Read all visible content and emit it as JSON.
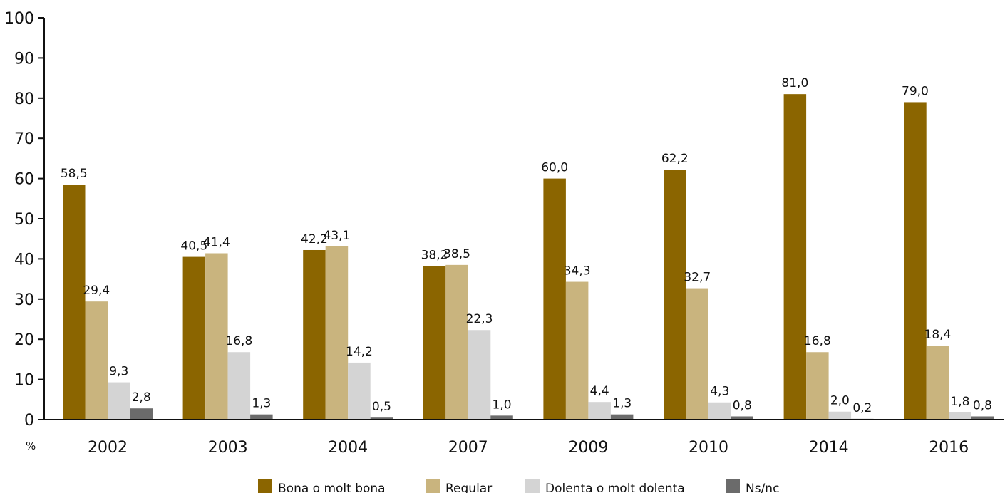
{
  "chart_data": {
    "type": "bar",
    "title": "",
    "xlabel": "",
    "ylabel": "",
    "unit_label": "%",
    "categories": [
      "2002",
      "2003",
      "2004",
      "2007",
      "2009",
      "2010",
      "2014",
      "2016"
    ],
    "ylim": [
      0,
      100
    ],
    "yticks": [
      0,
      10,
      20,
      30,
      40,
      50,
      60,
      70,
      80,
      90,
      100
    ],
    "grid": false,
    "legend_position": "bottom",
    "series": [
      {
        "name": "Bona o molt bona",
        "color": "#8B6500",
        "values": [
          58.5,
          40.5,
          42.2,
          38.2,
          60.0,
          62.2,
          81.0,
          79.0
        ],
        "labels": [
          "58,5",
          "40,5",
          "42,2",
          "38,2",
          "60,0",
          "62,2",
          "81,0",
          "79,0"
        ]
      },
      {
        "name": "Regular",
        "color": "#C9B47E",
        "values": [
          29.4,
          41.4,
          43.1,
          38.5,
          34.3,
          32.7,
          16.8,
          18.4
        ],
        "labels": [
          "29,4",
          "41,4",
          "43,1",
          "38,5",
          "34,3",
          "32,7",
          "16,8",
          "18,4"
        ]
      },
      {
        "name": "Dolenta o molt dolenta",
        "color": "#D4D4D4",
        "values": [
          9.3,
          16.8,
          14.2,
          22.3,
          4.4,
          4.3,
          2.0,
          1.8
        ],
        "labels": [
          "9,3",
          "16,8",
          "14,2",
          "22,3",
          "4,4",
          "4,3",
          "2,0",
          "1,8"
        ]
      },
      {
        "name": "Ns/nc",
        "color": "#6B6B6B",
        "values": [
          2.8,
          1.3,
          0.5,
          1.0,
          1.3,
          0.8,
          0.2,
          0.8
        ],
        "labels": [
          "2,8",
          "1,3",
          "0,5",
          "1,0",
          "1,3",
          "0,8",
          "0,2",
          "0,8"
        ]
      }
    ]
  }
}
